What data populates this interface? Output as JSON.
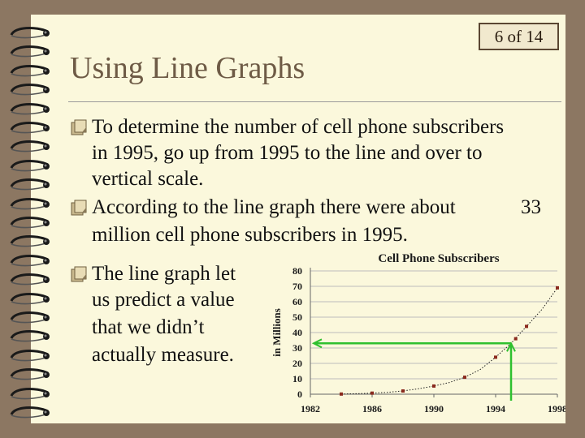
{
  "slide": {
    "title": "Using Line Graphs",
    "page_indicator": "6  of 14",
    "bullets": [
      {
        "lines": [
          "To determine the number of cell phone subscribers",
          "in 1995, go up from 1995 to the line and over to",
          "vertical scale."
        ]
      },
      {
        "lines": [
          "According to the line graph there were about",
          "million cell phone subscribers in 1995."
        ],
        "value": "33"
      },
      {
        "lines": [
          "The line graph let",
          "us predict a value",
          "that we didn’t",
          "actually measure."
        ]
      }
    ]
  },
  "colors": {
    "background": "#8c7762",
    "page": "#fbf8dc",
    "title": "#6e5b46",
    "bullet_icon": "#8a7a58",
    "series_marker": "#8b2a1e",
    "guide": "#2fc02f"
  },
  "icons": {
    "bullet": "page-flip-icon",
    "binding": "spiral-ring"
  },
  "chart_data": {
    "type": "scatter",
    "title": "Cell Phone Subscribers",
    "ylabel": "in Millions",
    "xlabel": "",
    "xlim": [
      1982,
      1998
    ],
    "ylim": [
      0,
      80
    ],
    "x_ticks": [
      1982,
      1986,
      1990,
      1994,
      1998
    ],
    "y_ticks": [
      0,
      10,
      20,
      30,
      40,
      50,
      60,
      70,
      80
    ],
    "grid": "horizontal",
    "series": [
      {
        "x": [
          1984,
          1985,
          1986,
          1987,
          1988,
          1989,
          1990,
          1991,
          1992,
          1993,
          1994,
          1995,
          1996,
          1997,
          1998
        ],
        "y": [
          0.1,
          0.3,
          0.7,
          1.2,
          2.1,
          3.5,
          5.3,
          7.6,
          11,
          16,
          24,
          33,
          44,
          55,
          69
        ]
      }
    ],
    "markers": [
      {
        "x": 1984,
        "y": 0.1
      },
      {
        "x": 1986,
        "y": 0.7
      },
      {
        "x": 1988,
        "y": 2.1
      },
      {
        "x": 1990,
        "y": 5.3
      },
      {
        "x": 1992,
        "y": 11
      },
      {
        "x": 1994,
        "y": 24
      },
      {
        "x": 1995.3,
        "y": 36
      },
      {
        "x": 1996,
        "y": 44
      },
      {
        "x": 1998,
        "y": 69
      }
    ],
    "guide": {
      "x": 1995,
      "y": 33
    }
  }
}
